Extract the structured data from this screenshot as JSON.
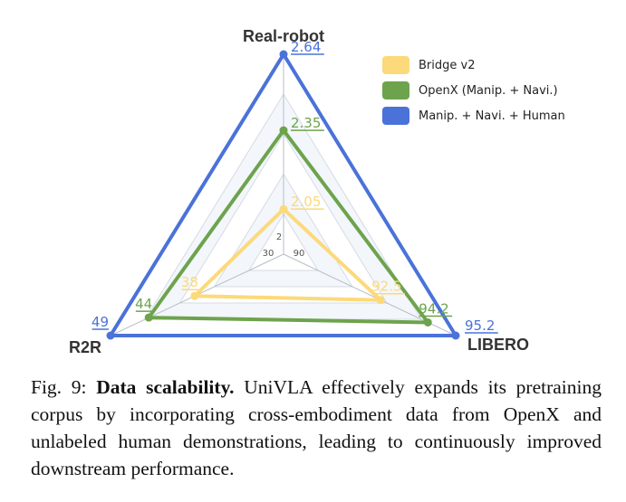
{
  "chart_data": {
    "type": "radar",
    "axes": [
      "Real-robot",
      "LIBERO",
      "R2R"
    ],
    "series": [
      {
        "name": "Bridge v2",
        "color": "#fcd97a",
        "values": [
          2.05,
          92.5,
          38
        ],
        "labels": [
          "2.05",
          "92.5",
          "38"
        ]
      },
      {
        "name": "OpenX (Manip. + Navi.)",
        "color": "#6da34d",
        "values": [
          2.35,
          94.2,
          44
        ],
        "labels": [
          "2.35",
          "94.2",
          "44"
        ]
      },
      {
        "name": "Manip. + Navi. + Human",
        "color": "#4a72d9",
        "values": [
          2.64,
          95.2,
          49
        ],
        "labels": [
          "2.64",
          "95.2",
          "49"
        ]
      }
    ],
    "axis_min": {
      "Real-robot": 2,
      "LIBERO": 90,
      "R2R": 30
    },
    "axis_max": {
      "Real-robot": 2.64,
      "LIBERO": 95.2,
      "R2R": 49
    },
    "tick_labels": {
      "Real-robot": "2",
      "LIBERO": "90",
      "R2R": "30"
    },
    "legend_position": "top-right"
  },
  "caption": {
    "prefix": "Fig. 9: ",
    "bold": "Data scalability.",
    "text": " UniVLA effectively expands its pretraining corpus by incorporating cross-embodiment data from OpenX and unlabeled human demonstrations, leading to continuously improved downstream performance."
  }
}
